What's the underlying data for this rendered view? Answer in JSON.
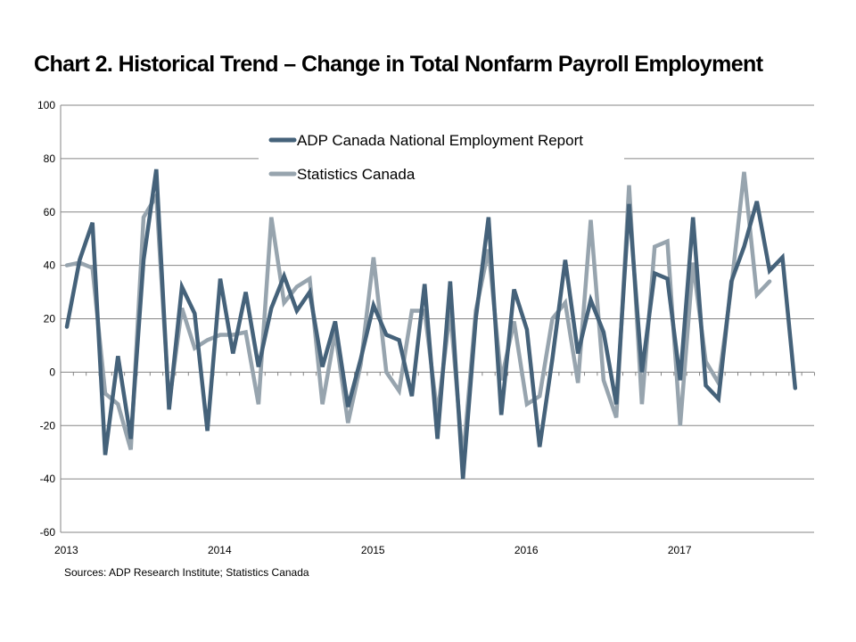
{
  "title": "Chart 2. Historical Trend – Change in Total Nonfarm Payroll Employment",
  "source_note": "Sources: ADP Research Institute; Statistics Canada",
  "chart_data": {
    "type": "line",
    "title": "Chart 2. Historical Trend – Change in Total Nonfarm Payroll Employment",
    "xlabel": "",
    "ylabel": "",
    "ylim": [
      -60,
      100
    ],
    "yticks": [
      100,
      80,
      60,
      40,
      20,
      0,
      -20,
      -40,
      -60
    ],
    "xtick_labels": [
      "2013",
      "2014",
      "2015",
      "2016",
      "2017"
    ],
    "x_start": "2013-01",
    "x_frequency": "monthly",
    "total_months": 60,
    "grid": true,
    "legend_position": "top-center",
    "series": [
      {
        "name": "ADP Canada National Employment Report",
        "color": "#45627a",
        "values": [
          17,
          42,
          56,
          -31,
          6,
          -25,
          42,
          76,
          -14,
          32,
          22,
          -22,
          35,
          7,
          30,
          2,
          24,
          36,
          23,
          30,
          2,
          19,
          -13,
          5,
          25,
          14,
          12,
          -9,
          33,
          -25,
          34,
          -40,
          20,
          58,
          -16,
          31,
          16,
          -28,
          5,
          42,
          7,
          27,
          15,
          -12,
          63,
          0,
          37,
          35,
          -3,
          58,
          -5,
          -10,
          34,
          47,
          64,
          38,
          43,
          -6
        ]
      },
      {
        "name": "Statistics Canada",
        "color": "#97a4ae",
        "values": [
          40,
          41,
          39,
          -8,
          -12,
          -29,
          58,
          66,
          -12,
          24,
          9,
          12,
          14,
          14,
          15,
          -12,
          58,
          26,
          32,
          35,
          -12,
          15,
          -19,
          3,
          43,
          0,
          -7,
          23,
          23,
          -16,
          23,
          -33,
          23,
          46,
          -3,
          19,
          -12,
          -9,
          20,
          26,
          -4,
          57,
          -3,
          -17,
          70,
          -12,
          47,
          49,
          -20,
          41,
          4,
          -4,
          32,
          75,
          29,
          34
        ]
      }
    ]
  }
}
